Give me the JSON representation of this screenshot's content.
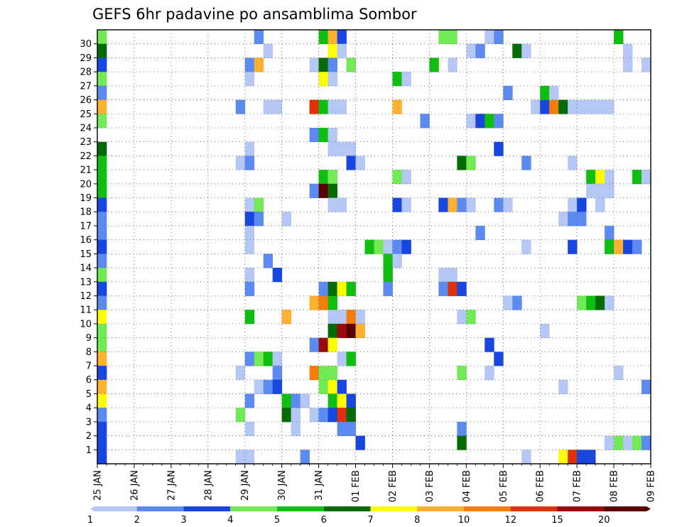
{
  "chart_data": {
    "type": "heatmap",
    "title": "GEFS 6hr padavine po ansamblima Sombor",
    "x_tick_labels": [
      "25 JAN",
      "26 JAN",
      "27 JAN",
      "28 JAN",
      "29 JAN",
      "30 JAN",
      "31 JAN",
      "01 FEB",
      "02 FEB",
      "03 FEB",
      "04 FEB",
      "05 FEB",
      "06 FEB",
      "07 FEB",
      "08 FEB",
      "09 FEB"
    ],
    "x_steps_per_day": 4,
    "x_total_steps": 60,
    "y_tick_labels": [
      "1",
      "2",
      "3",
      "4",
      "5",
      "6",
      "7",
      "8",
      "9",
      "10",
      "11",
      "12",
      "13",
      "14",
      "15",
      "16",
      "17",
      "18",
      "19",
      "20",
      "21",
      "22",
      "23",
      "24",
      "25",
      "26",
      "27",
      "28",
      "29",
      "30"
    ],
    "y_rows": 31,
    "grid": true,
    "colorbar": {
      "position": "bottom",
      "labels": [
        "1",
        "2",
        "3",
        "4",
        "5",
        "6",
        "7",
        "8",
        "10",
        "12",
        "15",
        "20"
      ],
      "colors": [
        "#b4c7f5",
        "#5b8af0",
        "#1846e0",
        "#72ea55",
        "#0fbf0f",
        "#036b03",
        "#ffff00",
        "#ffb030",
        "#f77d0a",
        "#e03008",
        "#9b0a0a",
        "#5a0000"
      ]
    },
    "cells": [
      {
        "x": 0,
        "y": 30,
        "c": 3
      },
      {
        "x": 0,
        "y": 29,
        "c": 5
      },
      {
        "x": 0,
        "y": 28,
        "c": 2
      },
      {
        "x": 0,
        "y": 27,
        "c": 3
      },
      {
        "x": 0,
        "y": 26,
        "c": 1
      },
      {
        "x": 0,
        "y": 25,
        "c": 7
      },
      {
        "x": 0,
        "y": 24,
        "c": 3
      },
      {
        "x": 0,
        "y": 22,
        "c": 5
      },
      {
        "x": 0,
        "y": 21,
        "c": 4
      },
      {
        "x": 0,
        "y": 20,
        "c": 4
      },
      {
        "x": 0,
        "y": 19,
        "c": 4
      },
      {
        "x": 0,
        "y": 18,
        "c": 2
      },
      {
        "x": 0,
        "y": 17,
        "c": 1
      },
      {
        "x": 0,
        "y": 16,
        "c": 1
      },
      {
        "x": 0,
        "y": 15,
        "c": 2
      },
      {
        "x": 0,
        "y": 14,
        "c": 1
      },
      {
        "x": 0,
        "y": 13,
        "c": 3
      },
      {
        "x": 0,
        "y": 12,
        "c": 2
      },
      {
        "x": 0,
        "y": 11,
        "c": 1
      },
      {
        "x": 0,
        "y": 10,
        "c": 6
      },
      {
        "x": 0,
        "y": 9,
        "c": 3
      },
      {
        "x": 0,
        "y": 8,
        "c": 3
      },
      {
        "x": 0,
        "y": 7,
        "c": 7
      },
      {
        "x": 0,
        "y": 6,
        "c": 2
      },
      {
        "x": 0,
        "y": 5,
        "c": 7
      },
      {
        "x": 0,
        "y": 4,
        "c": 6
      },
      {
        "x": 0,
        "y": 3,
        "c": 1
      },
      {
        "x": 0,
        "y": 2,
        "c": 2
      },
      {
        "x": 0,
        "y": 1,
        "c": 2
      },
      {
        "x": 0,
        "y": 0,
        "c": 2
      },
      {
        "x": 17,
        "y": 30,
        "c": 1
      },
      {
        "x": 18,
        "y": 29,
        "c": 0
      },
      {
        "x": 16,
        "y": 28,
        "c": 1
      },
      {
        "x": 17,
        "y": 28,
        "c": 7
      },
      {
        "x": 16,
        "y": 27,
        "c": 0
      },
      {
        "x": 15,
        "y": 25,
        "c": 1
      },
      {
        "x": 18,
        "y": 25,
        "c": 0
      },
      {
        "x": 19,
        "y": 25,
        "c": 0
      },
      {
        "x": 16,
        "y": 22,
        "c": 0
      },
      {
        "x": 15,
        "y": 21,
        "c": 0
      },
      {
        "x": 16,
        "y": 21,
        "c": 1
      },
      {
        "x": 16,
        "y": 18,
        "c": 0
      },
      {
        "x": 17,
        "y": 18,
        "c": 3
      },
      {
        "x": 16,
        "y": 17,
        "c": 2
      },
      {
        "x": 17,
        "y": 17,
        "c": 1
      },
      {
        "x": 20,
        "y": 17,
        "c": 0
      },
      {
        "x": 16,
        "y": 16,
        "c": 0
      },
      {
        "x": 16,
        "y": 15,
        "c": 0
      },
      {
        "x": 18,
        "y": 14,
        "c": 1
      },
      {
        "x": 16,
        "y": 13,
        "c": 0
      },
      {
        "x": 19,
        "y": 13,
        "c": 2
      },
      {
        "x": 16,
        "y": 12,
        "c": 1
      },
      {
        "x": 16,
        "y": 10,
        "c": 4
      },
      {
        "x": 20,
        "y": 10,
        "c": 7
      },
      {
        "x": 16,
        "y": 7,
        "c": 1
      },
      {
        "x": 17,
        "y": 7,
        "c": 3
      },
      {
        "x": 18,
        "y": 7,
        "c": 4
      },
      {
        "x": 19,
        "y": 7,
        "c": 0
      },
      {
        "x": 15,
        "y": 6,
        "c": 0
      },
      {
        "x": 19,
        "y": 6,
        "c": 1
      },
      {
        "x": 17,
        "y": 5,
        "c": 0
      },
      {
        "x": 18,
        "y": 5,
        "c": 1
      },
      {
        "x": 19,
        "y": 5,
        "c": 2
      },
      {
        "x": 16,
        "y": 4,
        "c": 1
      },
      {
        "x": 20,
        "y": 4,
        "c": 4
      },
      {
        "x": 21,
        "y": 4,
        "c": 1
      },
      {
        "x": 15,
        "y": 3,
        "c": 3
      },
      {
        "x": 20,
        "y": 3,
        "c": 5
      },
      {
        "x": 21,
        "y": 3,
        "c": 0
      },
      {
        "x": 16,
        "y": 2,
        "c": 0
      },
      {
        "x": 21,
        "y": 2,
        "c": 0
      },
      {
        "x": 15,
        "y": 0,
        "c": 0
      },
      {
        "x": 16,
        "y": 0,
        "c": 0
      },
      {
        "x": 24,
        "y": 30,
        "c": 4
      },
      {
        "x": 25,
        "y": 30,
        "c": 7
      },
      {
        "x": 26,
        "y": 30,
        "c": 2
      },
      {
        "x": 25,
        "y": 29,
        "c": 6
      },
      {
        "x": 26,
        "y": 29,
        "c": 0
      },
      {
        "x": 23,
        "y": 28,
        "c": 0
      },
      {
        "x": 24,
        "y": 28,
        "c": 5
      },
      {
        "x": 25,
        "y": 28,
        "c": 1
      },
      {
        "x": 27,
        "y": 28,
        "c": 3
      },
      {
        "x": 24,
        "y": 27,
        "c": 6
      },
      {
        "x": 25,
        "y": 27,
        "c": 0
      },
      {
        "x": 23,
        "y": 25,
        "c": 9
      },
      {
        "x": 24,
        "y": 25,
        "c": 4
      },
      {
        "x": 25,
        "y": 25,
        "c": 0
      },
      {
        "x": 26,
        "y": 25,
        "c": 0
      },
      {
        "x": 23,
        "y": 23,
        "c": 1
      },
      {
        "x": 24,
        "y": 23,
        "c": 4
      },
      {
        "x": 25,
        "y": 23,
        "c": 0
      },
      {
        "x": 25,
        "y": 22,
        "c": 0
      },
      {
        "x": 26,
        "y": 22,
        "c": 0
      },
      {
        "x": 27,
        "y": 22,
        "c": 0
      },
      {
        "x": 27,
        "y": 21,
        "c": 2
      },
      {
        "x": 28,
        "y": 21,
        "c": 0
      },
      {
        "x": 24,
        "y": 20,
        "c": 4
      },
      {
        "x": 25,
        "y": 20,
        "c": 3
      },
      {
        "x": 23,
        "y": 19,
        "c": 1
      },
      {
        "x": 24,
        "y": 19,
        "c": 11
      },
      {
        "x": 25,
        "y": 19,
        "c": 5
      },
      {
        "x": 25,
        "y": 18,
        "c": 0
      },
      {
        "x": 26,
        "y": 18,
        "c": 0
      },
      {
        "x": 23,
        "y": 11,
        "c": 7
      },
      {
        "x": 24,
        "y": 11,
        "c": 8
      },
      {
        "x": 25,
        "y": 11,
        "c": 4
      },
      {
        "x": 24,
        "y": 12,
        "c": 1
      },
      {
        "x": 25,
        "y": 12,
        "c": 5
      },
      {
        "x": 26,
        "y": 12,
        "c": 6
      },
      {
        "x": 27,
        "y": 12,
        "c": 4
      },
      {
        "x": 25,
        "y": 10,
        "c": 0
      },
      {
        "x": 26,
        "y": 10,
        "c": 0
      },
      {
        "x": 27,
        "y": 10,
        "c": 8
      },
      {
        "x": 28,
        "y": 10,
        "c": 0
      },
      {
        "x": 25,
        "y": 9,
        "c": 5
      },
      {
        "x": 26,
        "y": 9,
        "c": 10
      },
      {
        "x": 27,
        "y": 9,
        "c": 11
      },
      {
        "x": 28,
        "y": 9,
        "c": 7
      },
      {
        "x": 23,
        "y": 8,
        "c": 1
      },
      {
        "x": 24,
        "y": 8,
        "c": 10
      },
      {
        "x": 25,
        "y": 8,
        "c": 6
      },
      {
        "x": 26,
        "y": 7,
        "c": 0
      },
      {
        "x": 27,
        "y": 7,
        "c": 4
      },
      {
        "x": 23,
        "y": 6,
        "c": 8
      },
      {
        "x": 24,
        "y": 6,
        "c": 3
      },
      {
        "x": 25,
        "y": 6,
        "c": 3
      },
      {
        "x": 24,
        "y": 5,
        "c": 3
      },
      {
        "x": 25,
        "y": 5,
        "c": 6
      },
      {
        "x": 26,
        "y": 5,
        "c": 2
      },
      {
        "x": 22,
        "y": 4,
        "c": 0
      },
      {
        "x": 25,
        "y": 4,
        "c": 4
      },
      {
        "x": 26,
        "y": 4,
        "c": 6
      },
      {
        "x": 27,
        "y": 4,
        "c": 2
      },
      {
        "x": 23,
        "y": 3,
        "c": 0
      },
      {
        "x": 24,
        "y": 3,
        "c": 1
      },
      {
        "x": 25,
        "y": 3,
        "c": 2
      },
      {
        "x": 26,
        "y": 3,
        "c": 9
      },
      {
        "x": 27,
        "y": 3,
        "c": 5
      },
      {
        "x": 26,
        "y": 2,
        "c": 1
      },
      {
        "x": 27,
        "y": 2,
        "c": 1
      },
      {
        "x": 28,
        "y": 1,
        "c": 2
      },
      {
        "x": 22,
        "y": 0,
        "c": 1
      },
      {
        "x": 32,
        "y": 20,
        "c": 3
      },
      {
        "x": 33,
        "y": 20,
        "c": 0
      },
      {
        "x": 32,
        "y": 27,
        "c": 4
      },
      {
        "x": 33,
        "y": 27,
        "c": 0
      },
      {
        "x": 32,
        "y": 25,
        "c": 7
      },
      {
        "x": 35,
        "y": 24,
        "c": 1
      },
      {
        "x": 32,
        "y": 18,
        "c": 2
      },
      {
        "x": 33,
        "y": 18,
        "c": 0
      },
      {
        "x": 29,
        "y": 15,
        "c": 4
      },
      {
        "x": 30,
        "y": 15,
        "c": 3
      },
      {
        "x": 31,
        "y": 15,
        "c": 0
      },
      {
        "x": 32,
        "y": 15,
        "c": 1
      },
      {
        "x": 33,
        "y": 15,
        "c": 2
      },
      {
        "x": 31,
        "y": 14,
        "c": 4
      },
      {
        "x": 32,
        "y": 14,
        "c": 0
      },
      {
        "x": 31,
        "y": 13,
        "c": 4
      },
      {
        "x": 31,
        "y": 12,
        "c": 1
      },
      {
        "x": 36,
        "y": 28,
        "c": 4
      },
      {
        "x": 37,
        "y": 30,
        "c": 3
      },
      {
        "x": 38,
        "y": 30,
        "c": 3
      },
      {
        "x": 38,
        "y": 28,
        "c": 0
      },
      {
        "x": 37,
        "y": 18,
        "c": 2
      },
      {
        "x": 38,
        "y": 18,
        "c": 7
      },
      {
        "x": 39,
        "y": 18,
        "c": 1
      },
      {
        "x": 40,
        "y": 18,
        "c": 0
      },
      {
        "x": 37,
        "y": 13,
        "c": 0
      },
      {
        "x": 38,
        "y": 13,
        "c": 0
      },
      {
        "x": 37,
        "y": 12,
        "c": 1
      },
      {
        "x": 38,
        "y": 12,
        "c": 9
      },
      {
        "x": 39,
        "y": 12,
        "c": 2
      },
      {
        "x": 39,
        "y": 10,
        "c": 0
      },
      {
        "x": 40,
        "y": 10,
        "c": 3
      },
      {
        "x": 39,
        "y": 6,
        "c": 3
      },
      {
        "x": 39,
        "y": 2,
        "c": 1
      },
      {
        "x": 39,
        "y": 1,
        "c": 5
      },
      {
        "x": 39,
        "y": 21,
        "c": 5
      },
      {
        "x": 40,
        "y": 21,
        "c": 3
      },
      {
        "x": 40,
        "y": 29,
        "c": 0
      },
      {
        "x": 41,
        "y": 29,
        "c": 1
      },
      {
        "x": 40,
        "y": 24,
        "c": 0
      },
      {
        "x": 41,
        "y": 24,
        "c": 2
      },
      {
        "x": 42,
        "y": 24,
        "c": 4
      },
      {
        "x": 43,
        "y": 24,
        "c": 1
      },
      {
        "x": 41,
        "y": 16,
        "c": 1
      },
      {
        "x": 42,
        "y": 30,
        "c": 0
      },
      {
        "x": 43,
        "y": 30,
        "c": 1
      },
      {
        "x": 43,
        "y": 18,
        "c": 1
      },
      {
        "x": 44,
        "y": 18,
        "c": 0
      },
      {
        "x": 42,
        "y": 8,
        "c": 2
      },
      {
        "x": 43,
        "y": 7,
        "c": 2
      },
      {
        "x": 42,
        "y": 6,
        "c": 0
      },
      {
        "x": 43,
        "y": 22,
        "c": 2
      },
      {
        "x": 44,
        "y": 26,
        "c": 1
      },
      {
        "x": 44,
        "y": 11,
        "c": 0
      },
      {
        "x": 45,
        "y": 11,
        "c": 1
      },
      {
        "x": 45,
        "y": 29,
        "c": 5
      },
      {
        "x": 46,
        "y": 29,
        "c": 0
      },
      {
        "x": 46,
        "y": 21,
        "c": 1
      },
      {
        "x": 46,
        "y": 15,
        "c": 0
      },
      {
        "x": 46,
        "y": 0,
        "c": 0
      },
      {
        "x": 47,
        "y": 25,
        "c": 0
      },
      {
        "x": 48,
        "y": 25,
        "c": 2
      },
      {
        "x": 49,
        "y": 25,
        "c": 8
      },
      {
        "x": 50,
        "y": 25,
        "c": 5
      },
      {
        "x": 51,
        "y": 25,
        "c": 0
      },
      {
        "x": 52,
        "y": 25,
        "c": 0
      },
      {
        "x": 53,
        "y": 25,
        "c": 0
      },
      {
        "x": 54,
        "y": 25,
        "c": 0
      },
      {
        "x": 55,
        "y": 25,
        "c": 0
      },
      {
        "x": 48,
        "y": 26,
        "c": 4
      },
      {
        "x": 49,
        "y": 26,
        "c": 0
      },
      {
        "x": 48,
        "y": 9,
        "c": 0
      },
      {
        "x": 50,
        "y": 5,
        "c": 0
      },
      {
        "x": 50,
        "y": 17,
        "c": 0
      },
      {
        "x": 51,
        "y": 18,
        "c": 0
      },
      {
        "x": 52,
        "y": 18,
        "c": 2
      },
      {
        "x": 51,
        "y": 17,
        "c": 1
      },
      {
        "x": 52,
        "y": 17,
        "c": 1
      },
      {
        "x": 51,
        "y": 21,
        "c": 0
      },
      {
        "x": 51,
        "y": 15,
        "c": 2
      },
      {
        "x": 50,
        "y": 0,
        "c": 6
      },
      {
        "x": 51,
        "y": 0,
        "c": 9
      },
      {
        "x": 52,
        "y": 0,
        "c": 2
      },
      {
        "x": 53,
        "y": 0,
        "c": 2
      },
      {
        "x": 52,
        "y": 11,
        "c": 3
      },
      {
        "x": 53,
        "y": 11,
        "c": 4
      },
      {
        "x": 54,
        "y": 11,
        "c": 5
      },
      {
        "x": 55,
        "y": 11,
        "c": 0
      },
      {
        "x": 53,
        "y": 20,
        "c": 4
      },
      {
        "x": 54,
        "y": 20,
        "c": 6
      },
      {
        "x": 55,
        "y": 20,
        "c": 0
      },
      {
        "x": 53,
        "y": 19,
        "c": 0
      },
      {
        "x": 54,
        "y": 19,
        "c": 0
      },
      {
        "x": 54,
        "y": 18,
        "c": 0
      },
      {
        "x": 55,
        "y": 19,
        "c": 0
      },
      {
        "x": 55,
        "y": 16,
        "c": 1
      },
      {
        "x": 55,
        "y": 15,
        "c": 4
      },
      {
        "x": 56,
        "y": 15,
        "c": 7
      },
      {
        "x": 57,
        "y": 15,
        "c": 2
      },
      {
        "x": 58,
        "y": 15,
        "c": 1
      },
      {
        "x": 55,
        "y": 1,
        "c": 0
      },
      {
        "x": 56,
        "y": 1,
        "c": 3
      },
      {
        "x": 57,
        "y": 1,
        "c": 0
      },
      {
        "x": 58,
        "y": 1,
        "c": 3
      },
      {
        "x": 59,
        "y": 1,
        "c": 1
      },
      {
        "x": 56,
        "y": 6,
        "c": 0
      },
      {
        "x": 56,
        "y": 30,
        "c": 4
      },
      {
        "x": 57,
        "y": 29,
        "c": 0
      },
      {
        "x": 57,
        "y": 28,
        "c": 0
      },
      {
        "x": 59,
        "y": 28,
        "c": 0
      },
      {
        "x": 58,
        "y": 20,
        "c": 4
      },
      {
        "x": 59,
        "y": 20,
        "c": 0
      },
      {
        "x": 59,
        "y": 5,
        "c": 1
      }
    ]
  }
}
